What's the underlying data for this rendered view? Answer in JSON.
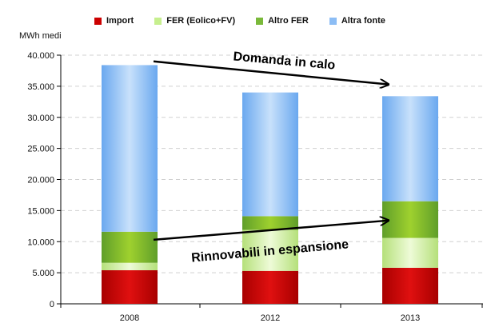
{
  "chart_data": {
    "type": "bar",
    "stacked": true,
    "ylabel": "MWh medi",
    "categories": [
      "2008",
      "2012",
      "2013"
    ],
    "ylim": [
      0,
      40000
    ],
    "yticks": [
      "0",
      "5.000",
      "10.000",
      "15.000",
      "20.000",
      "25.000",
      "30.000",
      "35.000",
      "40.000"
    ],
    "ytick_values": [
      0,
      5000,
      10000,
      15000,
      20000,
      25000,
      30000,
      35000,
      40000
    ],
    "grid": "dashed horizontal",
    "legend_position": "top",
    "series": [
      {
        "name": "Import",
        "color": "#cc0000",
        "values": [
          5400,
          5300,
          5800
        ]
      },
      {
        "name": "FER (Eolico+FV)",
        "color": "#c6ef8e",
        "values": [
          1200,
          6600,
          4800
        ]
      },
      {
        "name": "Altro FER",
        "color": "#7ab93a",
        "values": [
          5000,
          2200,
          5900
        ]
      },
      {
        "name": "Altra fonte",
        "color": "#8cbdf5",
        "values": [
          26800,
          19900,
          16900
        ]
      }
    ],
    "annotations": [
      {
        "text": "Domanda in calo",
        "from_category": "2008",
        "from_value": 39000,
        "to_category": "2013",
        "to_value": 35300
      },
      {
        "text": "Rinnovabili in espansione",
        "from_category": "2008",
        "from_value": 10300,
        "to_category": "2013",
        "to_value": 13400
      }
    ]
  }
}
